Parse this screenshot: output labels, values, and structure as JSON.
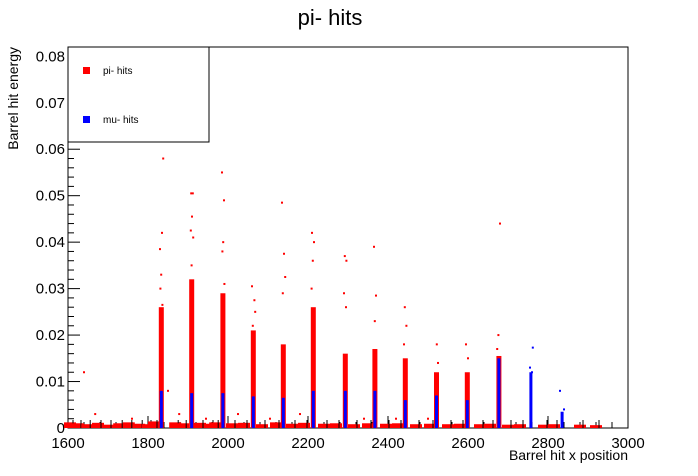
{
  "chart_data": {
    "type": "scatter",
    "title": "pi- hits",
    "xlabel": "Barrel hit x position",
    "ylabel": "Barrel hit energy",
    "xlim": [
      1600,
      3000
    ],
    "ylim": [
      0,
      0.082
    ],
    "x_ticks": [
      1600,
      1800,
      2000,
      2200,
      2400,
      2600,
      2800,
      3000
    ],
    "y_ticks": [
      0,
      0.01,
      0.02,
      0.03,
      0.04,
      0.05,
      0.06,
      0.07,
      0.08
    ],
    "y_tick_labels": [
      "0",
      "0.01",
      "0.02",
      "0.03",
      "0.04",
      "0.05",
      "0.06",
      "0.07",
      "0.08"
    ],
    "grid": false,
    "legend_position": "top-left",
    "series": [
      {
        "name": "pi- hits",
        "color": "#ff0000",
        "points": [
          [
            1838,
            0.058
          ],
          [
            1835,
            0.042
          ],
          [
            1830,
            0.0385
          ],
          [
            1833,
            0.033
          ],
          [
            1831,
            0.03
          ],
          [
            1836,
            0.0265
          ],
          [
            1908,
            0.0505
          ],
          [
            1912,
            0.0505
          ],
          [
            1910,
            0.0455
          ],
          [
            1907,
            0.0425
          ],
          [
            1913,
            0.041
          ],
          [
            1909,
            0.035
          ],
          [
            1985,
            0.055
          ],
          [
            1990,
            0.049
          ],
          [
            1988,
            0.04
          ],
          [
            1986,
            0.038
          ],
          [
            1991,
            0.031
          ],
          [
            2060,
            0.0305
          ],
          [
            2066,
            0.0275
          ],
          [
            2068,
            0.025
          ],
          [
            2062,
            0.022
          ],
          [
            2135,
            0.0485
          ],
          [
            2140,
            0.0375
          ],
          [
            2143,
            0.0325
          ],
          [
            2137,
            0.029
          ],
          [
            2210,
            0.042
          ],
          [
            2215,
            0.04
          ],
          [
            2212,
            0.036
          ],
          [
            2209,
            0.03
          ],
          [
            2292,
            0.037
          ],
          [
            2296,
            0.036
          ],
          [
            2290,
            0.029
          ],
          [
            2295,
            0.026
          ],
          [
            2365,
            0.039
          ],
          [
            2370,
            0.0285
          ],
          [
            2367,
            0.023
          ],
          [
            2442,
            0.026
          ],
          [
            2446,
            0.022
          ],
          [
            2440,
            0.018
          ],
          [
            2522,
            0.018
          ],
          [
            2525,
            0.014
          ],
          [
            2595,
            0.018
          ],
          [
            2600,
            0.015
          ],
          [
            2680,
            0.044
          ],
          [
            2676,
            0.02
          ],
          [
            2673,
            0.017
          ],
          [
            1640,
            0.012
          ],
          [
            1668,
            0.003
          ],
          [
            1760,
            0.002
          ],
          [
            1850,
            0.008
          ],
          [
            1878,
            0.003
          ],
          [
            1945,
            0.002
          ],
          [
            2025,
            0.003
          ],
          [
            2105,
            0.002
          ],
          [
            2180,
            0.003
          ],
          [
            2340,
            0.002
          ],
          [
            2420,
            0.002
          ],
          [
            2500,
            0.002
          ]
        ]
      },
      {
        "name": "mu- hits",
        "color": "#0000ff",
        "points": [
          [
            2755,
            0.013
          ],
          [
            2762,
            0.0173
          ],
          [
            2760,
            0.012
          ],
          [
            2830,
            0.008
          ],
          [
            2840,
            0.004
          ]
        ]
      }
    ],
    "hit_columns": [
      {
        "x": 1832,
        "red_max": 0.026,
        "blue_max": 0.008
      },
      {
        "x": 1908,
        "red_max": 0.032,
        "blue_max": 0.0075
      },
      {
        "x": 1986,
        "red_max": 0.029,
        "blue_max": 0.0075
      },
      {
        "x": 2062,
        "red_max": 0.021,
        "blue_max": 0.0068
      },
      {
        "x": 2137,
        "red_max": 0.018,
        "blue_max": 0.0065
      },
      {
        "x": 2212,
        "red_max": 0.026,
        "blue_max": 0.008
      },
      {
        "x": 2292,
        "red_max": 0.016,
        "blue_max": 0.008
      },
      {
        "x": 2366,
        "red_max": 0.017,
        "blue_max": 0.008
      },
      {
        "x": 2442,
        "red_max": 0.015,
        "blue_max": 0.006
      },
      {
        "x": 2520,
        "red_max": 0.012,
        "blue_max": 0.007
      },
      {
        "x": 2597,
        "red_max": 0.012,
        "blue_max": 0.006
      },
      {
        "x": 2676,
        "red_max": 0.0155,
        "blue_max": 0.015
      },
      {
        "x": 2756,
        "red_max": 0.0,
        "blue_max": 0.012
      },
      {
        "x": 2834,
        "red_max": 0.0,
        "blue_max": 0.0035
      }
    ],
    "baseline_hits": [
      {
        "x": 1605,
        "y": 0.001
      },
      {
        "x": 1625,
        "y": 0.0008
      },
      {
        "x": 1648,
        "y": 0.0006
      },
      {
        "x": 1675,
        "y": 0.0009
      },
      {
        "x": 1700,
        "y": 0.0005
      },
      {
        "x": 1728,
        "y": 0.0008
      },
      {
        "x": 1752,
        "y": 0.001
      },
      {
        "x": 1778,
        "y": 0.0007
      },
      {
        "x": 1800,
        "y": 0.0006
      },
      {
        "x": 1815,
        "y": 0.0012
      },
      {
        "x": 1868,
        "y": 0.001
      },
      {
        "x": 1888,
        "y": 0.0008
      },
      {
        "x": 1930,
        "y": 0.0009
      },
      {
        "x": 1955,
        "y": 0.0007
      },
      {
        "x": 1968,
        "y": 0.001
      },
      {
        "x": 2010,
        "y": 0.0008
      },
      {
        "x": 2040,
        "y": 0.0009
      },
      {
        "x": 2085,
        "y": 0.0006
      },
      {
        "x": 2120,
        "y": 0.001
      },
      {
        "x": 2160,
        "y": 0.0007
      },
      {
        "x": 2190,
        "y": 0.0009
      },
      {
        "x": 2240,
        "y": 0.0007
      },
      {
        "x": 2270,
        "y": 0.0008
      },
      {
        "x": 2315,
        "y": 0.0006
      },
      {
        "x": 2350,
        "y": 0.0008
      },
      {
        "x": 2395,
        "y": 0.0007
      },
      {
        "x": 2425,
        "y": 0.0008
      },
      {
        "x": 2470,
        "y": 0.0006
      },
      {
        "x": 2505,
        "y": 0.0007
      },
      {
        "x": 2550,
        "y": 0.0006
      },
      {
        "x": 2580,
        "y": 0.0007
      },
      {
        "x": 2630,
        "y": 0.0006
      },
      {
        "x": 2655,
        "y": 0.0007
      },
      {
        "x": 2700,
        "y": 0.0005
      },
      {
        "x": 2730,
        "y": 0.0006
      },
      {
        "x": 2790,
        "y": 0.0005
      },
      {
        "x": 2815,
        "y": 0.0006
      },
      {
        "x": 2880,
        "y": 0.0005
      },
      {
        "x": 2920,
        "y": 0.0004
      }
    ]
  }
}
